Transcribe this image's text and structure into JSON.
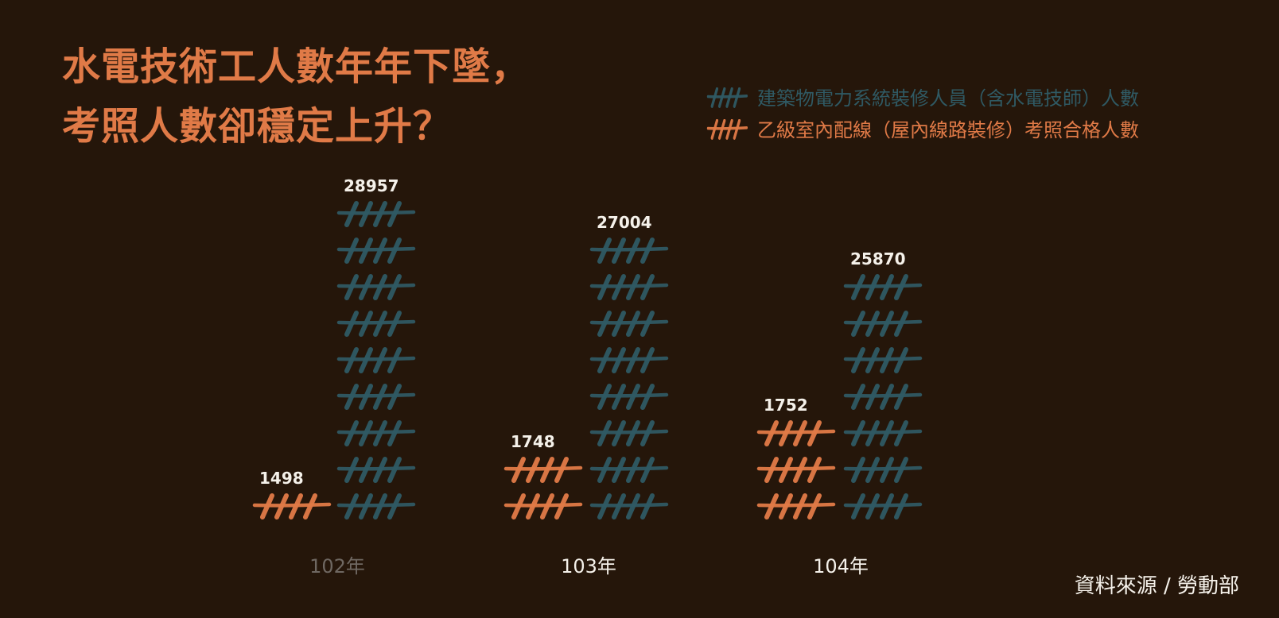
{
  "title_lines": [
    "水電技術工人數年年下墜，",
    "考照人數卻穩定上升？"
  ],
  "source": "資料來源 / 勞動部",
  "colors": {
    "background": "#25160a",
    "title": "#e07a47",
    "series_workers": "#2f5963",
    "series_licensed": "#e07a47",
    "value_label": "#f5f1ea",
    "category_active": "#f5f1ea",
    "category_muted": "#6f6862",
    "legend_workers_text": "#2f5963",
    "legend_licensed_text": "#e07a47"
  },
  "chart_data": {
    "type": "bar",
    "style": "pictograph tally marks",
    "categories": [
      "102年",
      "103年",
      "104年"
    ],
    "category_states": [
      "muted",
      "active",
      "active"
    ],
    "series": [
      {
        "name": "乙級室內配線（屋內線路裝修）考照合格人數",
        "values": [
          1498,
          1748,
          1752
        ],
        "color": "#e07a47",
        "icon_counts": [
          1,
          2,
          3
        ]
      },
      {
        "name": "建築物電力系統裝修人員（含水電技師）人數",
        "values": [
          28957,
          27004,
          25870
        ],
        "color": "#2f5963",
        "icon_counts": [
          9,
          8,
          7
        ]
      }
    ],
    "legend": [
      {
        "name": "建築物電力系統裝修人員（含水電技師）人數",
        "series_index": 1
      },
      {
        "name": "乙級室內配線（屋內線路裝修）考照合格人數",
        "series_index": 0
      }
    ],
    "legend_position": "top-right",
    "grid": false,
    "xlabel": "",
    "ylabel": ""
  }
}
